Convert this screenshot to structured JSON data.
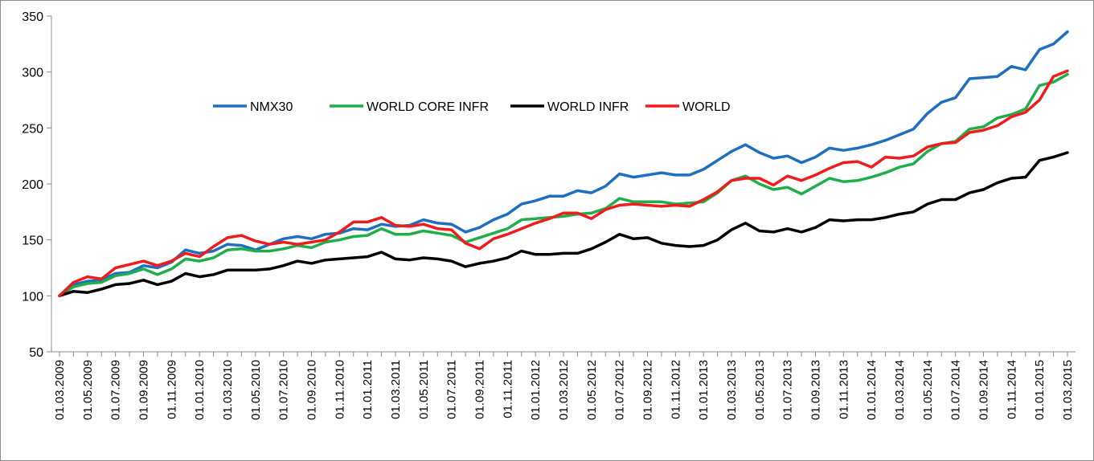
{
  "chart_data": {
    "type": "line",
    "title": "",
    "xlabel": "",
    "ylabel": "",
    "ylim": [
      50,
      350
    ],
    "yticks": [
      50,
      100,
      150,
      200,
      250,
      300,
      350
    ],
    "grid": false,
    "legend_position": "top-left-center",
    "x_tick_labels": [
      "01.03.2009",
      "01.05.2009",
      "01.07.2009",
      "01.09.2009",
      "01.11.2009",
      "01.01.2010",
      "01.03.2010",
      "01.05.2010",
      "01.07.2010",
      "01.09.2010",
      "01.11.2010",
      "01.01.2011",
      "01.03.2011",
      "01.05.2011",
      "01.07.2011",
      "01.09.2011",
      "01.11.2011",
      "01.01.2012",
      "01.03.2012",
      "01.05.2012",
      "01.07.2012",
      "01.09.2012",
      "01.11.2012",
      "01.01.2013",
      "01.03.2013",
      "01.05.2013",
      "01.07.2013",
      "01.09.2013",
      "01.11.2013",
      "01.01.2014",
      "01.03.2014",
      "01.05.2014",
      "01.07.2014",
      "01.09.2014",
      "01.11.2014",
      "01.01.2015",
      "01.03.2015"
    ],
    "series": [
      {
        "name": "NMX30",
        "color": "#1f6fc0",
        "values": [
          100,
          110,
          113,
          114,
          120,
          121,
          127,
          125,
          130,
          141,
          138,
          140,
          146,
          145,
          141,
          146,
          151,
          153,
          151,
          155,
          156,
          160,
          159,
          164,
          162,
          163,
          168,
          165,
          164,
          157,
          161,
          168,
          173,
          182,
          185,
          189,
          189,
          194,
          192,
          198,
          209,
          206,
          208,
          210,
          208,
          208,
          213,
          221,
          229,
          235,
          228,
          223,
          225,
          219,
          224,
          232,
          230,
          232,
          235,
          239,
          244,
          249,
          263,
          273,
          277,
          294,
          295,
          296,
          305,
          302,
          320,
          325,
          336
        ]
      },
      {
        "name": "WORLD CORE INFR",
        "color": "#1fae4a",
        "values": [
          100,
          108,
          111,
          112,
          118,
          120,
          124,
          119,
          124,
          133,
          131,
          134,
          141,
          142,
          140,
          140,
          142,
          145,
          143,
          148,
          150,
          153,
          154,
          160,
          155,
          155,
          158,
          156,
          154,
          148,
          152,
          156,
          160,
          168,
          169,
          170,
          171,
          173,
          174,
          178,
          187,
          184,
          184,
          184,
          182,
          183,
          184,
          192,
          203,
          207,
          200,
          195,
          197,
          191,
          198,
          205,
          202,
          203,
          206,
          210,
          215,
          218,
          229,
          236,
          238,
          249,
          251,
          259,
          262,
          267,
          288,
          291,
          298
        ]
      },
      {
        "name": "WORLD INFR",
        "color": "#000000",
        "values": [
          100,
          104,
          103,
          106,
          110,
          111,
          114,
          110,
          113,
          120,
          117,
          119,
          123,
          123,
          123,
          124,
          127,
          131,
          129,
          132,
          133,
          134,
          135,
          139,
          133,
          132,
          134,
          133,
          131,
          126,
          129,
          131,
          134,
          140,
          137,
          137,
          138,
          138,
          142,
          148,
          155,
          151,
          152,
          147,
          145,
          144,
          145,
          150,
          159,
          165,
          158,
          157,
          160,
          157,
          161,
          168,
          167,
          168,
          168,
          170,
          173,
          175,
          182,
          186,
          186,
          192,
          195,
          201,
          205,
          206,
          221,
          224,
          228
        ]
      },
      {
        "name": "WORLD",
        "color": "#ee1c1c",
        "values": [
          100,
          112,
          117,
          115,
          125,
          128,
          131,
          127,
          131,
          138,
          135,
          144,
          152,
          154,
          149,
          146,
          148,
          146,
          148,
          150,
          157,
          166,
          166,
          170,
          163,
          162,
          164,
          160,
          159,
          147,
          142,
          151,
          155,
          160,
          165,
          169,
          174,
          174,
          169,
          177,
          181,
          182,
          181,
          180,
          181,
          180,
          186,
          193,
          203,
          205,
          205,
          199,
          207,
          203,
          208,
          214,
          219,
          220,
          215,
          224,
          223,
          225,
          233,
          236,
          237,
          246,
          248,
          252,
          260,
          264,
          275,
          296,
          301
        ]
      }
    ]
  }
}
